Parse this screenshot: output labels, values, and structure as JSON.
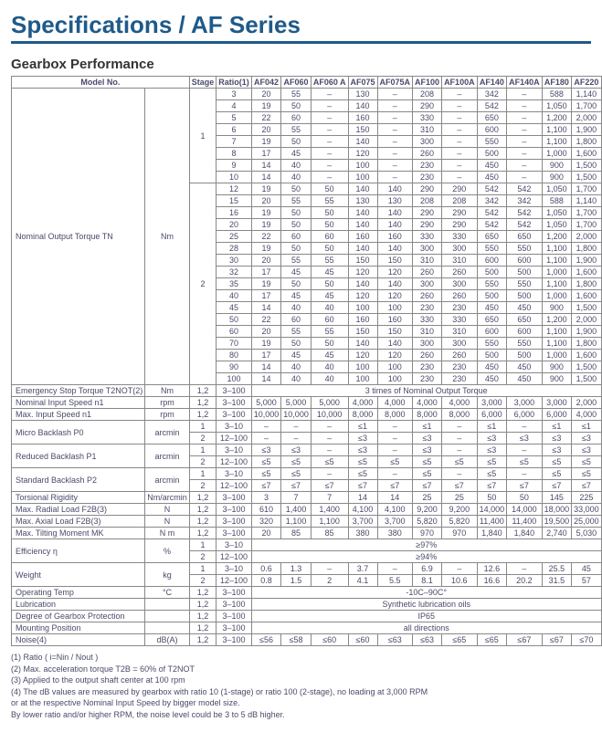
{
  "title": "Specifications / AF Series",
  "section": "Gearbox Performance",
  "header_cells": [
    "Model No.",
    "Stage",
    "Ratio(1)",
    "AF042",
    "AF060",
    "AF060 A",
    "AF075",
    "AF075A",
    "AF100",
    "AF100A",
    "AF140",
    "AF140A",
    "AF180",
    "AF220"
  ],
  "torque": {
    "label": "Nominal Output Torque TN",
    "unit": "Nm",
    "stage1": [
      {
        "ratio": "3",
        "v": [
          "20",
          "55",
          "–",
          "130",
          "–",
          "208",
          "–",
          "342",
          "–",
          "588",
          "1,140"
        ]
      },
      {
        "ratio": "4",
        "v": [
          "19",
          "50",
          "–",
          "140",
          "–",
          "290",
          "–",
          "542",
          "–",
          "1,050",
          "1,700"
        ]
      },
      {
        "ratio": "5",
        "v": [
          "22",
          "60",
          "–",
          "160",
          "–",
          "330",
          "–",
          "650",
          "–",
          "1,200",
          "2,000"
        ]
      },
      {
        "ratio": "6",
        "v": [
          "20",
          "55",
          "–",
          "150",
          "–",
          "310",
          "–",
          "600",
          "–",
          "1,100",
          "1,900"
        ]
      },
      {
        "ratio": "7",
        "v": [
          "19",
          "50",
          "–",
          "140",
          "–",
          "300",
          "–",
          "550",
          "–",
          "1,100",
          "1,800"
        ]
      },
      {
        "ratio": "8",
        "v": [
          "17",
          "45",
          "–",
          "120",
          "–",
          "260",
          "–",
          "500",
          "–",
          "1,000",
          "1,600"
        ]
      },
      {
        "ratio": "9",
        "v": [
          "14",
          "40",
          "–",
          "100",
          "–",
          "230",
          "–",
          "450",
          "–",
          "900",
          "1,500"
        ]
      },
      {
        "ratio": "10",
        "v": [
          "14",
          "40",
          "–",
          "100",
          "–",
          "230",
          "–",
          "450",
          "–",
          "900",
          "1,500"
        ]
      }
    ],
    "stage2": [
      {
        "ratio": "12",
        "v": [
          "19",
          "50",
          "50",
          "140",
          "140",
          "290",
          "290",
          "542",
          "542",
          "1,050",
          "1,700"
        ]
      },
      {
        "ratio": "15",
        "v": [
          "20",
          "55",
          "55",
          "130",
          "130",
          "208",
          "208",
          "342",
          "342",
          "588",
          "1,140"
        ]
      },
      {
        "ratio": "16",
        "v": [
          "19",
          "50",
          "50",
          "140",
          "140",
          "290",
          "290",
          "542",
          "542",
          "1,050",
          "1,700"
        ]
      },
      {
        "ratio": "20",
        "v": [
          "19",
          "50",
          "50",
          "140",
          "140",
          "290",
          "290",
          "542",
          "542",
          "1,050",
          "1,700"
        ]
      },
      {
        "ratio": "25",
        "v": [
          "22",
          "60",
          "60",
          "160",
          "160",
          "330",
          "330",
          "650",
          "650",
          "1,200",
          "2,000"
        ]
      },
      {
        "ratio": "28",
        "v": [
          "19",
          "50",
          "50",
          "140",
          "140",
          "300",
          "300",
          "550",
          "550",
          "1,100",
          "1,800"
        ]
      },
      {
        "ratio": "30",
        "v": [
          "20",
          "55",
          "55",
          "150",
          "150",
          "310",
          "310",
          "600",
          "600",
          "1,100",
          "1,900"
        ]
      },
      {
        "ratio": "32",
        "v": [
          "17",
          "45",
          "45",
          "120",
          "120",
          "260",
          "260",
          "500",
          "500",
          "1,000",
          "1,600"
        ]
      },
      {
        "ratio": "35",
        "v": [
          "19",
          "50",
          "50",
          "140",
          "140",
          "300",
          "300",
          "550",
          "550",
          "1,100",
          "1,800"
        ]
      },
      {
        "ratio": "40",
        "v": [
          "17",
          "45",
          "45",
          "120",
          "120",
          "260",
          "260",
          "500",
          "500",
          "1,000",
          "1,600"
        ]
      },
      {
        "ratio": "45",
        "v": [
          "14",
          "40",
          "40",
          "100",
          "100",
          "230",
          "230",
          "450",
          "450",
          "900",
          "1,500"
        ]
      },
      {
        "ratio": "50",
        "v": [
          "22",
          "60",
          "60",
          "160",
          "160",
          "330",
          "330",
          "650",
          "650",
          "1,200",
          "2,000"
        ]
      },
      {
        "ratio": "60",
        "v": [
          "20",
          "55",
          "55",
          "150",
          "150",
          "310",
          "310",
          "600",
          "600",
          "1,100",
          "1,900"
        ]
      },
      {
        "ratio": "70",
        "v": [
          "19",
          "50",
          "50",
          "140",
          "140",
          "300",
          "300",
          "550",
          "550",
          "1,100",
          "1,800"
        ]
      },
      {
        "ratio": "80",
        "v": [
          "17",
          "45",
          "45",
          "120",
          "120",
          "260",
          "260",
          "500",
          "500",
          "1,000",
          "1,600"
        ]
      },
      {
        "ratio": "90",
        "v": [
          "14",
          "40",
          "40",
          "100",
          "100",
          "230",
          "230",
          "450",
          "450",
          "900",
          "1,500"
        ]
      },
      {
        "ratio": "100",
        "v": [
          "14",
          "40",
          "40",
          "100",
          "100",
          "230",
          "230",
          "450",
          "450",
          "900",
          "1,500"
        ]
      }
    ]
  },
  "spec_rows": [
    {
      "label": "Emergency Stop Torque T2NOT(2)",
      "unit": "Nm",
      "stage": "1,2",
      "ratio": "3–100",
      "span": "3 times of Nominal Output Torque"
    },
    {
      "label": "Nominal Input Speed n1",
      "unit": "rpm",
      "stage": "1,2",
      "ratio": "3–100",
      "v": [
        "5,000",
        "5,000",
        "5,000",
        "4,000",
        "4,000",
        "4,000",
        "4,000",
        "3,000",
        "3,000",
        "3,000",
        "2,000"
      ]
    },
    {
      "label": "Max. Input Speed n1",
      "unit": "rpm",
      "stage": "1,2",
      "ratio": "3–100",
      "v": [
        "10,000",
        "10,000",
        "10,000",
        "8,000",
        "8,000",
        "8,000",
        "8,000",
        "6,000",
        "6,000",
        "6,000",
        "4,000"
      ]
    }
  ],
  "backlash": [
    {
      "label": "Micro Backlash P0",
      "unit": "arcmin",
      "rows": [
        {
          "stage": "1",
          "ratio": "3–10",
          "v": [
            "–",
            "–",
            "–",
            "≤1",
            "–",
            "≤1",
            "–",
            "≤1",
            "–",
            "≤1",
            "≤1"
          ]
        },
        {
          "stage": "2",
          "ratio": "12–100",
          "v": [
            "–",
            "–",
            "–",
            "≤3",
            "–",
            "≤3",
            "–",
            "≤3",
            "≤3",
            "≤3",
            "≤3"
          ]
        }
      ]
    },
    {
      "label": "Reduced Backlash P1",
      "unit": "arcmin",
      "rows": [
        {
          "stage": "1",
          "ratio": "3–10",
          "v": [
            "≤3",
            "≤3",
            "–",
            "≤3",
            "–",
            "≤3",
            "–",
            "≤3",
            "–",
            "≤3",
            "≤3"
          ]
        },
        {
          "stage": "2",
          "ratio": "12–100",
          "v": [
            "≤5",
            "≤5",
            "≤5",
            "≤5",
            "≤5",
            "≤5",
            "≤5",
            "≤5",
            "≤5",
            "≤5",
            "≤5"
          ]
        }
      ]
    },
    {
      "label": "Standard Backlash P2",
      "unit": "arcmin",
      "rows": [
        {
          "stage": "1",
          "ratio": "3–10",
          "v": [
            "≤5",
            "≤5",
            "–",
            "≤5",
            "–",
            "≤5",
            "–",
            "≤5",
            "–",
            "≤5",
            "≤5"
          ]
        },
        {
          "stage": "2",
          "ratio": "12–100",
          "v": [
            "≤7",
            "≤7",
            "≤7",
            "≤7",
            "≤7",
            "≤7",
            "≤7",
            "≤7",
            "≤7",
            "≤7",
            "≤7"
          ]
        }
      ]
    }
  ],
  "more_rows": [
    {
      "label": "Torsional Rigidity",
      "unit": "Nm/arcmin",
      "stage": "1,2",
      "ratio": "3–100",
      "v": [
        "3",
        "7",
        "7",
        "14",
        "14",
        "25",
        "25",
        "50",
        "50",
        "145",
        "225"
      ]
    },
    {
      "label": "Max. Radial Load F2B(3)",
      "unit": "N",
      "stage": "1,2",
      "ratio": "3–100",
      "v": [
        "610",
        "1,400",
        "1,400",
        "4,100",
        "4,100",
        "9,200",
        "9,200",
        "14,000",
        "14,000",
        "18,000",
        "33,000"
      ]
    },
    {
      "label": "Max. Axial Load F2B(3)",
      "unit": "N",
      "stage": "1,2",
      "ratio": "3–100",
      "v": [
        "320",
        "1,100",
        "1,100",
        "3,700",
        "3,700",
        "5,820",
        "5,820",
        "11,400",
        "11,400",
        "19,500",
        "25,000"
      ]
    },
    {
      "label": "Max. Tilting Moment MK",
      "unit": "N m",
      "stage": "1,2",
      "ratio": "3–100",
      "v": [
        "20",
        "85",
        "85",
        "380",
        "380",
        "970",
        "970",
        "1,840",
        "1,840",
        "2,740",
        "5,030"
      ]
    }
  ],
  "efficiency": {
    "label": "Efficiency η",
    "unit": "%",
    "rows": [
      {
        "stage": "1",
        "ratio": "3–10",
        "span": "≥97%"
      },
      {
        "stage": "2",
        "ratio": "12–100",
        "span": "≥94%"
      }
    ]
  },
  "weight": {
    "label": "Weight",
    "unit": "kg",
    "rows": [
      {
        "stage": "1",
        "ratio": "3–10",
        "v": [
          "0.6",
          "1.3",
          "–",
          "3.7",
          "–",
          "6.9",
          "–",
          "12.6",
          "–",
          "25.5",
          "45"
        ]
      },
      {
        "stage": "2",
        "ratio": "12–100",
        "v": [
          "0.8",
          "1.5",
          "2",
          "4.1",
          "5.5",
          "8.1",
          "10.6",
          "16.6",
          "20.2",
          "31.5",
          "57"
        ]
      }
    ]
  },
  "bottom_rows": [
    {
      "label": "Operating Temp",
      "unit": "°C",
      "stage": "1,2",
      "ratio": "3–100",
      "span": "-10C–90C°"
    },
    {
      "label": "Lubrication",
      "unit": "",
      "stage": "1,2",
      "ratio": "3–100",
      "span": "Synthetic lubrication oils"
    },
    {
      "label": "Degree of Gearbox Protection",
      "unit": "",
      "stage": "1,2",
      "ratio": "3–100",
      "span": "IP65"
    },
    {
      "label": "Mounting Position",
      "unit": "",
      "stage": "1,2",
      "ratio": "3–100",
      "span": "all directions"
    },
    {
      "label": "Noise(4)",
      "unit": "dB(A)",
      "stage": "1,2",
      "ratio": "3–100",
      "v": [
        "≤56",
        "≤58",
        "≤60",
        "≤60",
        "≤63",
        "≤63",
        "≤65",
        "≤65",
        "≤67",
        "≤67",
        "≤70"
      ]
    }
  ],
  "footnotes": [
    "(1) Ratio ( i=Nin / Nout )",
    "(2) Max. acceleration torque T2B = 60% of T2NOT",
    "(3) Applied to the output shaft center at 100 rpm",
    "(4) The dB values are measured by gearbox with ratio 10 (1-stage) or ratio 100 (2-stage), no loading at 3,000 RPM",
    "     or at the respective Nominal Input Speed by bigger model size.",
    "     By lower ratio and/or higher RPM, the noise level could be 3 to 5 dB higher."
  ]
}
